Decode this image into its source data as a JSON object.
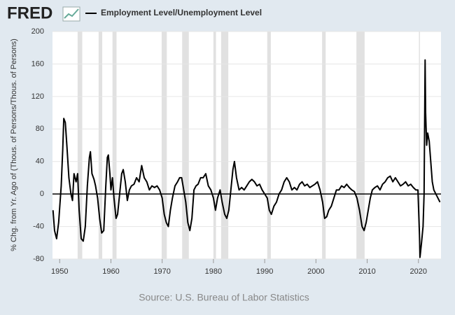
{
  "brand": "FRED",
  "chart_data": {
    "type": "line",
    "source": "Source: U.S. Bureau of Labor Statistics",
    "y_label": "% Chg. from Yr. Ago of (Thous. of Persons/Thous. of Persons)",
    "xlim": [
      1948.6,
      2024.4
    ],
    "xticks": [
      1950,
      1960,
      1970,
      1980,
      1990,
      2000,
      2010,
      2020
    ],
    "ylim": [
      -80,
      200
    ],
    "yticks": [
      -80,
      -40,
      0,
      40,
      80,
      120,
      160,
      200
    ],
    "grid": true,
    "zero_line": true,
    "shade_color": "#e1e1e1",
    "shaded_ranges": [
      [
        1953.5,
        1954.4
      ],
      [
        1957.6,
        1958.3
      ],
      [
        1960.3,
        1961.1
      ],
      [
        1969.9,
        1970.9
      ],
      [
        1973.9,
        1975.2
      ],
      [
        1980.0,
        1980.5
      ],
      [
        1981.5,
        1982.9
      ],
      [
        1990.5,
        1991.2
      ],
      [
        2001.2,
        2001.9
      ],
      [
        2007.9,
        2009.5
      ],
      [
        2020.1,
        2020.3
      ]
    ],
    "series": [
      {
        "name": "Employment Level/Unemployment Level",
        "color": "#000000",
        "x": [
          1948.7,
          1949.0,
          1949.4,
          1949.8,
          1950.3,
          1950.6,
          1950.8,
          1951.1,
          1951.4,
          1951.8,
          1952.2,
          1952.5,
          1952.8,
          1953.2,
          1953.5,
          1953.8,
          1954.2,
          1954.6,
          1955.0,
          1955.4,
          1955.8,
          1956.0,
          1956.3,
          1956.7,
          1957.0,
          1957.4,
          1957.8,
          1958.2,
          1958.6,
          1959.0,
          1959.3,
          1959.5,
          1959.8,
          1960.0,
          1960.3,
          1960.6,
          1961.0,
          1961.3,
          1961.7,
          1962.1,
          1962.4,
          1962.8,
          1963.2,
          1963.6,
          1964.0,
          1964.5,
          1965.0,
          1965.5,
          1966.0,
          1966.5,
          1967.0,
          1967.5,
          1968.0,
          1968.5,
          1969.0,
          1969.5,
          1970.0,
          1970.4,
          1970.8,
          1971.2,
          1971.6,
          1972.0,
          1972.5,
          1973.0,
          1973.4,
          1973.8,
          1974.2,
          1974.6,
          1975.0,
          1975.4,
          1975.8,
          1976.2,
          1976.6,
          1977.0,
          1977.5,
          1978.0,
          1978.5,
          1979.0,
          1979.5,
          1980.0,
          1980.4,
          1980.8,
          1981.3,
          1981.7,
          1982.2,
          1982.6,
          1983.0,
          1983.4,
          1983.8,
          1984.1,
          1984.5,
          1985.0,
          1985.5,
          1986.0,
          1986.5,
          1987.0,
          1987.5,
          1988.0,
          1988.5,
          1989.0,
          1989.5,
          1990.0,
          1990.5,
          1990.9,
          1991.3,
          1991.8,
          1992.3,
          1992.8,
          1993.3,
          1993.8,
          1994.3,
          1994.8,
          1995.3,
          1995.8,
          1996.3,
          1996.8,
          1997.3,
          1997.8,
          1998.3,
          1998.8,
          1999.3,
          1999.8,
          2000.3,
          2000.8,
          2001.3,
          2001.7,
          2002.1,
          2002.5,
          2003.0,
          2003.5,
          2004.0,
          2004.5,
          2005.0,
          2005.5,
          2006.0,
          2006.5,
          2007.0,
          2007.5,
          2008.0,
          2008.5,
          2009.0,
          2009.4,
          2009.8,
          2010.2,
          2010.6,
          2011.0,
          2011.5,
          2012.0,
          2012.5,
          2013.0,
          2013.5,
          2014.0,
          2014.5,
          2015.0,
          2015.5,
          2016.0,
          2016.5,
          2017.0,
          2017.5,
          2018.0,
          2018.5,
          2019.0,
          2019.5,
          2019.9,
          2020.2,
          2020.3,
          2020.6,
          2020.9,
          2021.1,
          2021.3,
          2021.4,
          2021.6,
          2021.8,
          2022.1,
          2022.4,
          2022.7,
          2023.0,
          2023.4,
          2023.8,
          2024.2
        ],
        "values": [
          -20,
          -45,
          -55,
          -35,
          10,
          55,
          93,
          88,
          60,
          20,
          0,
          -8,
          25,
          15,
          25,
          -20,
          -55,
          -58,
          -40,
          10,
          45,
          52,
          25,
          18,
          10,
          -5,
          -30,
          -48,
          -45,
          10,
          45,
          48,
          25,
          5,
          20,
          -5,
          -30,
          -25,
          0,
          25,
          30,
          15,
          -8,
          5,
          10,
          12,
          20,
          15,
          35,
          20,
          15,
          5,
          10,
          8,
          10,
          5,
          -5,
          -25,
          -35,
          -40,
          -20,
          -5,
          10,
          15,
          20,
          20,
          5,
          -10,
          -35,
          -45,
          -30,
          5,
          10,
          12,
          20,
          20,
          25,
          10,
          5,
          -5,
          -20,
          -5,
          5,
          -10,
          -25,
          -30,
          -20,
          5,
          30,
          40,
          20,
          5,
          8,
          5,
          10,
          15,
          18,
          15,
          10,
          12,
          5,
          0,
          -5,
          -20,
          -25,
          -15,
          -10,
          0,
          5,
          15,
          20,
          15,
          5,
          8,
          5,
          12,
          15,
          10,
          12,
          8,
          10,
          12,
          15,
          5,
          -10,
          -30,
          -28,
          -20,
          -15,
          -5,
          5,
          5,
          10,
          8,
          12,
          8,
          5,
          3,
          -5,
          -20,
          -40,
          -45,
          -35,
          -20,
          -5,
          5,
          8,
          10,
          5,
          12,
          15,
          20,
          22,
          15,
          20,
          15,
          10,
          12,
          15,
          10,
          12,
          8,
          5,
          5,
          -50,
          -78,
          -60,
          -40,
          0,
          165,
          100,
          60,
          75,
          65,
          40,
          15,
          5,
          0,
          -5,
          -10
        ]
      }
    ]
  }
}
